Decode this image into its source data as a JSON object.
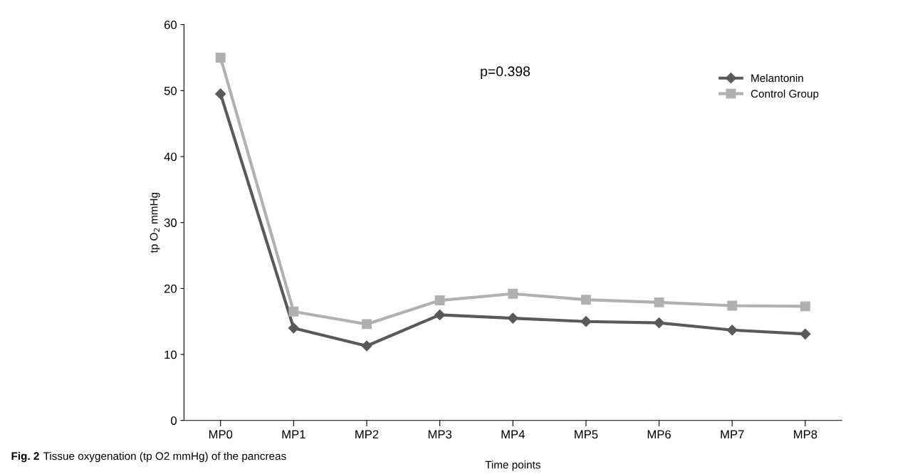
{
  "chart_data": {
    "type": "line",
    "xlabel": "Time points",
    "ylabel": "tp O$_{2}$ mmHg",
    "categories": [
      "MP0",
      "MP1",
      "MP2",
      "MP3",
      "MP4",
      "MP5",
      "MP6",
      "MP7",
      "MP8"
    ],
    "series": [
      {
        "name": "Melantonin",
        "color": "#595959",
        "marker": "diamond",
        "values": [
          49.5,
          14.0,
          11.3,
          16.0,
          15.5,
          15.0,
          14.8,
          13.7,
          13.1
        ]
      },
      {
        "name": "Control Group",
        "color": "#b0b0b0",
        "marker": "square",
        "values": [
          55.0,
          16.5,
          14.6,
          18.2,
          19.2,
          18.3,
          17.9,
          17.4,
          17.3
        ]
      }
    ],
    "ylim": [
      0,
      60
    ],
    "yticks": [
      0,
      10,
      20,
      30,
      40,
      50,
      60
    ],
    "grid": false,
    "legend": "top right",
    "line_style": "solid",
    "annotations": [
      {
        "text": "p=0.398"
      },
      {
        "text": "Fig. 2"
      },
      {
        "text": "Tissue oxygenation (tp O2 mmHg) of the pancreas"
      }
    ]
  }
}
